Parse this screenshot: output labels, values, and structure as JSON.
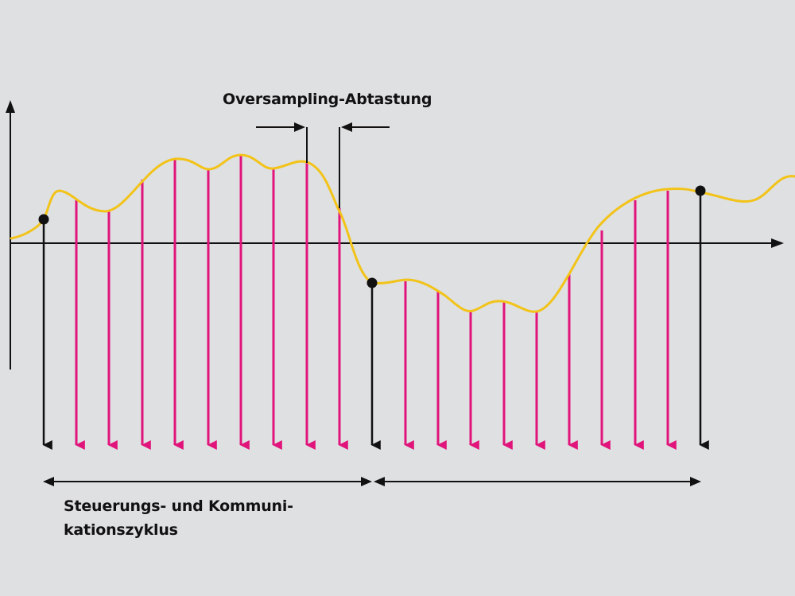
{
  "labels": {
    "oversampling": "Oversampling-Abtastung",
    "cycle_line1": "Steuerungs- und Kommuni-",
    "cycle_line2": "kationszyklus"
  },
  "colors": {
    "background": "#dfe0e2",
    "signal": "#f2c318",
    "oversample_arrows": "#e0147a",
    "cycle_arrows": "#111111",
    "axes": "#111111"
  },
  "icons": [
    "x-axis-arrow",
    "y-axis-arrow",
    "sample-point-dot",
    "sample-arrow",
    "cycle-span-arrow"
  ]
}
